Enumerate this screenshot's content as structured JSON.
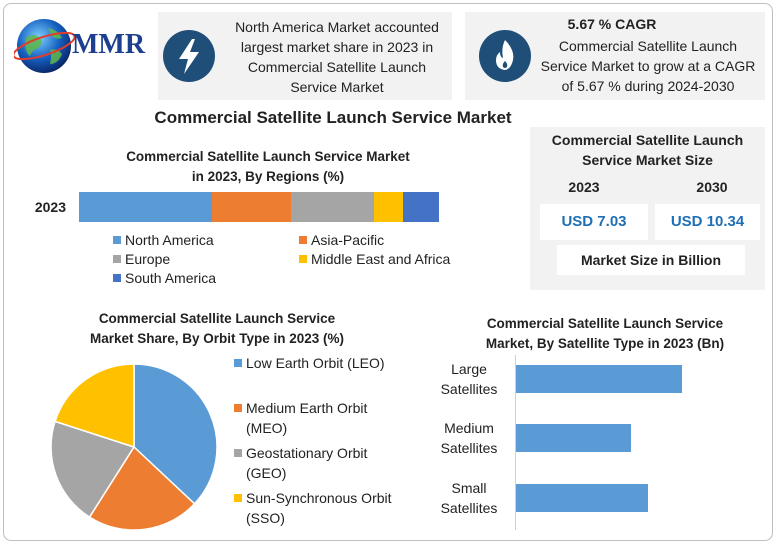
{
  "logo": "MMR",
  "highlights": [
    {
      "lines": [
        "North America Market accounted",
        "largest market share in 2023 in",
        "Commercial Satellite Launch",
        "Service Market"
      ]
    },
    {
      "heading": "5.67 % CAGR",
      "lines": [
        "Commercial Satellite Launch",
        "Service Market to grow at a CAGR",
        "of 5.67 % during 2024-2030"
      ]
    }
  ],
  "title": "Commercial Satellite Launch Service Market",
  "market_size": {
    "title": [
      "Commercial Satellite Launch",
      "Service Market Size"
    ],
    "years": [
      "2023",
      "2030"
    ],
    "values": [
      "USD 7.03",
      "USD 10.34"
    ],
    "note": "Market Size in Billion"
  },
  "chart_data": [
    {
      "type": "bar",
      "orientation": "horizontal",
      "stacked": true,
      "title": [
        "Commercial Satellite Launch Service Market",
        "in 2023, By Regions (%)"
      ],
      "categories": [
        "2023"
      ],
      "series": [
        {
          "name": "North America",
          "color": "#5b9bd5",
          "values": [
            37
          ]
        },
        {
          "name": "Asia-Pacific",
          "color": "#ed7d31",
          "values": [
            22
          ]
        },
        {
          "name": "Europe",
          "color": "#a5a5a5",
          "values": [
            23
          ]
        },
        {
          "name": "Middle East and Africa",
          "color": "#ffc000",
          "values": [
            8
          ]
        },
        {
          "name": "South America",
          "color": "#4472c4",
          "values": [
            10
          ]
        }
      ],
      "legend": "bottom"
    },
    {
      "type": "pie",
      "title": [
        "Commercial Satellite Launch Service",
        "Market Share, By Orbit Type in 2023  (%)"
      ],
      "categories": [
        "Low Earth Orbit (LEO)",
        "Medium Earth Orbit (MEO)",
        "Geostationary Orbit (GEO)",
        "Sun-Synchronous Orbit (SSO)"
      ],
      "values": [
        37,
        22,
        21,
        20
      ],
      "colors": [
        "#5b9bd5",
        "#ed7d31",
        "#a5a5a5",
        "#ffc000"
      ],
      "legend": "right"
    },
    {
      "type": "bar",
      "orientation": "horizontal",
      "stacked": false,
      "title": [
        "Commercial Satellite Launch Service",
        "Market, By Satellite Type in 2023 (Bn)"
      ],
      "categories": [
        "Large Satellites",
        "Medium Satellites",
        "Small Satellites"
      ],
      "values": [
        2.83,
        1.96,
        2.25
      ],
      "color": "#5b9bd5"
    }
  ]
}
